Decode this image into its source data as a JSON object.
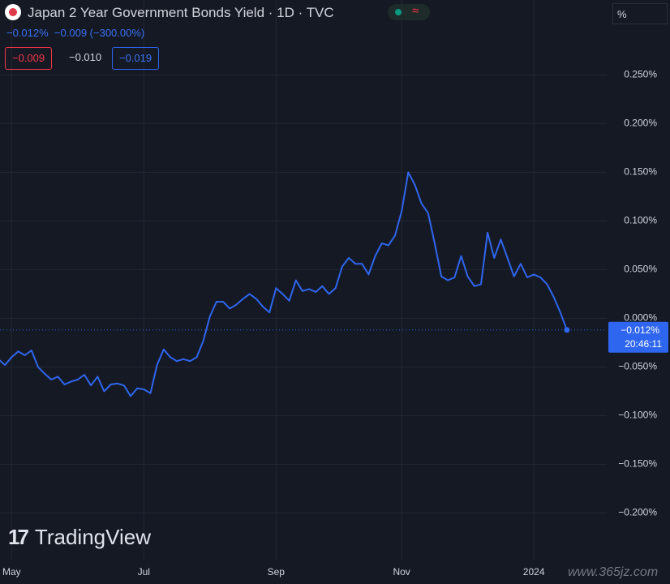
{
  "chart_data": {
    "type": "line",
    "title": "Japan 2 Year Government Bonds Yield · 1D · TVC",
    "change": "−0.012%",
    "change_abs": "−0.009",
    "change_pct": "(−300.00%)",
    "legend_values": [
      "−0.009",
      "−0.010",
      "−0.019"
    ],
    "unit_box": "%",
    "last_value_label": "−0.012%",
    "countdown": "20:46:11",
    "brand": "TradingView",
    "watermark": "www.365jz.com",
    "grid": true,
    "color": "#2f66f0",
    "categories": [
      null,
      null,
      "May",
      null,
      null,
      null,
      null,
      null,
      null,
      null,
      null,
      null,
      null,
      null,
      null,
      null,
      null,
      null,
      null,
      null,
      null,
      null,
      "Jul",
      null,
      null,
      null,
      null,
      null,
      null,
      null,
      null,
      null,
      null,
      null,
      null,
      null,
      null,
      null,
      null,
      null,
      null,
      null,
      "Sep",
      null,
      null,
      null,
      null,
      null,
      null,
      null,
      null,
      null,
      null,
      null,
      null,
      null,
      null,
      null,
      null,
      null,
      null,
      "Nov",
      null,
      null,
      null,
      null,
      null,
      null,
      null,
      null,
      null,
      null,
      null,
      null,
      null,
      null,
      null,
      null,
      null,
      null,
      null,
      "2024",
      null,
      null,
      null,
      null,
      null
    ],
    "values": [
      -0.042,
      -0.048,
      -0.04,
      -0.034,
      -0.038,
      -0.033,
      -0.05,
      -0.057,
      -0.063,
      -0.06,
      -0.068,
      -0.065,
      -0.063,
      -0.058,
      -0.069,
      -0.06,
      -0.075,
      -0.068,
      -0.067,
      -0.069,
      -0.08,
      -0.072,
      -0.073,
      -0.077,
      -0.048,
      -0.032,
      -0.04,
      -0.044,
      -0.042,
      -0.044,
      -0.04,
      -0.023,
      0.002,
      0.017,
      0.017,
      0.01,
      0.014,
      0.02,
      0.025,
      0.02,
      0.012,
      0.006,
      0.031,
      0.025,
      0.018,
      0.039,
      0.028,
      0.03,
      0.027,
      0.033,
      0.025,
      0.031,
      0.053,
      0.062,
      0.056,
      0.056,
      0.045,
      0.064,
      0.077,
      0.075,
      0.085,
      0.11,
      0.15,
      0.137,
      0.118,
      0.108,
      0.077,
      0.043,
      0.039,
      0.042,
      0.064,
      0.043,
      0.033,
      0.035,
      0.088,
      0.062,
      0.081,
      0.062,
      0.043,
      0.056,
      0.042,
      0.045,
      0.042,
      0.035,
      0.022,
      0.006,
      -0.012
    ],
    "ylim": [
      -0.248,
      0.327
    ],
    "yticks": [
      {
        "value": 0.25,
        "label": "0.250%"
      },
      {
        "value": 0.2,
        "label": "0.200%"
      },
      {
        "value": 0.15,
        "label": "0.150%"
      },
      {
        "value": 0.1,
        "label": "0.100%"
      },
      {
        "value": 0.05,
        "label": "0.050%"
      },
      {
        "value": 0,
        "label": "0.000%"
      },
      {
        "value": -0.05,
        "label": "−0.050%"
      },
      {
        "value": -0.1,
        "label": "−0.100%"
      },
      {
        "value": -0.15,
        "label": "−0.150%"
      },
      {
        "value": -0.2,
        "label": "−0.200%"
      }
    ]
  }
}
